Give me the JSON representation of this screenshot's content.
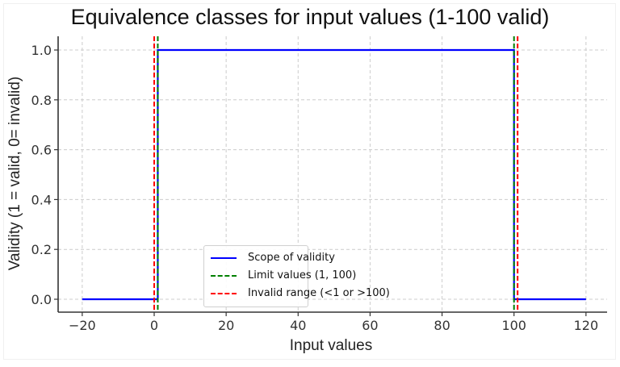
{
  "chart_data": {
    "type": "line",
    "title": "Equivalence classes for input values (1-100 valid)",
    "xlabel": "Input values",
    "ylabel": "Validity (1 = valid, 0= invalid)",
    "xlim": [
      -25,
      127
    ],
    "ylim": [
      -0.05,
      1.05
    ],
    "x_ticks": [
      -20,
      0,
      20,
      40,
      60,
      80,
      100,
      120
    ],
    "x_tick_labels": [
      "−20",
      "0",
      "20",
      "40",
      "60",
      "80",
      "100",
      "120"
    ],
    "y_ticks": [
      0.0,
      0.2,
      0.4,
      0.6,
      0.8,
      1.0
    ],
    "y_tick_labels": [
      "0.0",
      "0.2",
      "0.4",
      "0.6",
      "0.8",
      "1.0"
    ],
    "grid": true,
    "legend_position": "lower center",
    "series": [
      {
        "name": "Scope of validity",
        "style": "solid",
        "color": "#0000ff",
        "x": [
          -20,
          0,
          1,
          1,
          100,
          100,
          101,
          120
        ],
        "y": [
          0,
          0,
          0,
          1,
          1,
          0,
          0,
          0
        ]
      },
      {
        "name": "Limit values (1, 100)",
        "style": "dashed",
        "color": "#008000",
        "vlines": [
          1,
          100
        ]
      },
      {
        "name": "Invalid range (<1 or >100)",
        "style": "dashed",
        "color": "#ff0000",
        "vlines": [
          0,
          101
        ]
      }
    ]
  },
  "legend": {
    "items": [
      {
        "label": "Scope of validity"
      },
      {
        "label": "Limit values (1, 100)"
      },
      {
        "label": "Invalid range (<1 or >100)"
      }
    ]
  }
}
